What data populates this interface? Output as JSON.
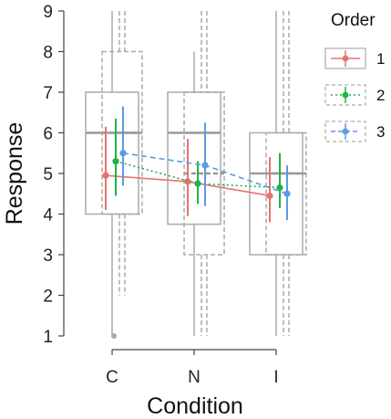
{
  "chart_data": {
    "type": "box+interval",
    "xlabel": "Condition",
    "ylabel": "Response",
    "ylim": [
      1,
      9
    ],
    "yticks": [
      1,
      2,
      3,
      4,
      5,
      6,
      7,
      8,
      9
    ],
    "categories": [
      "C",
      "N",
      "I"
    ],
    "grid": false,
    "legend": {
      "title": "Order",
      "placement": "right",
      "entries": [
        {
          "name": "1",
          "color": "#E8736C",
          "dash": "solid"
        },
        {
          "name": "2",
          "color": "#22B14C",
          "dash": "dotted"
        },
        {
          "name": "3",
          "color": "#5B9BE0",
          "dash": "dashed"
        }
      ]
    },
    "boxplots": [
      {
        "category": "C",
        "style": "solid",
        "min": 1,
        "q1": 4,
        "median": 6,
        "q3": 7,
        "max": 9
      },
      {
        "category": "C",
        "style": "dashed",
        "min": 2,
        "q1": 4,
        "median": 6,
        "q3": 8,
        "max": 9
      },
      {
        "category": "N",
        "style": "solid",
        "min": 1,
        "q1": 3.75,
        "median": 6,
        "q3": 7,
        "max": 8
      },
      {
        "category": "N",
        "style": "dashed",
        "min": 1,
        "q1": 3,
        "median": 5,
        "q3": 7,
        "max": 9
      },
      {
        "category": "I",
        "style": "solid",
        "min": 1,
        "q1": 3,
        "median": 5,
        "q3": 6,
        "max": 9
      },
      {
        "category": "I",
        "style": "dashed",
        "min": 1,
        "q1": 3,
        "median": 5,
        "q3": 6,
        "max": 9
      }
    ],
    "outliers": [
      {
        "category": "C",
        "value": 1
      }
    ],
    "series": [
      {
        "name": "1",
        "color": "#E8736C",
        "dash": "solid",
        "means": [
          4.95,
          4.8,
          4.45
        ],
        "lower": [
          4.1,
          3.95,
          3.8
        ],
        "upper": [
          6.15,
          5.85,
          5.4
        ]
      },
      {
        "name": "2",
        "color": "#22B14C",
        "dash": "dotted",
        "means": [
          5.3,
          4.75,
          4.65
        ],
        "lower": [
          4.45,
          4.25,
          4.15
        ],
        "upper": [
          6.35,
          5.3,
          5.5
        ]
      },
      {
        "name": "3",
        "color": "#5B9BE0",
        "dash": "dashed",
        "means": [
          5.5,
          5.2,
          4.5
        ],
        "lower": [
          4.7,
          4.2,
          3.85
        ],
        "upper": [
          6.65,
          6.25,
          5.2
        ]
      }
    ]
  }
}
